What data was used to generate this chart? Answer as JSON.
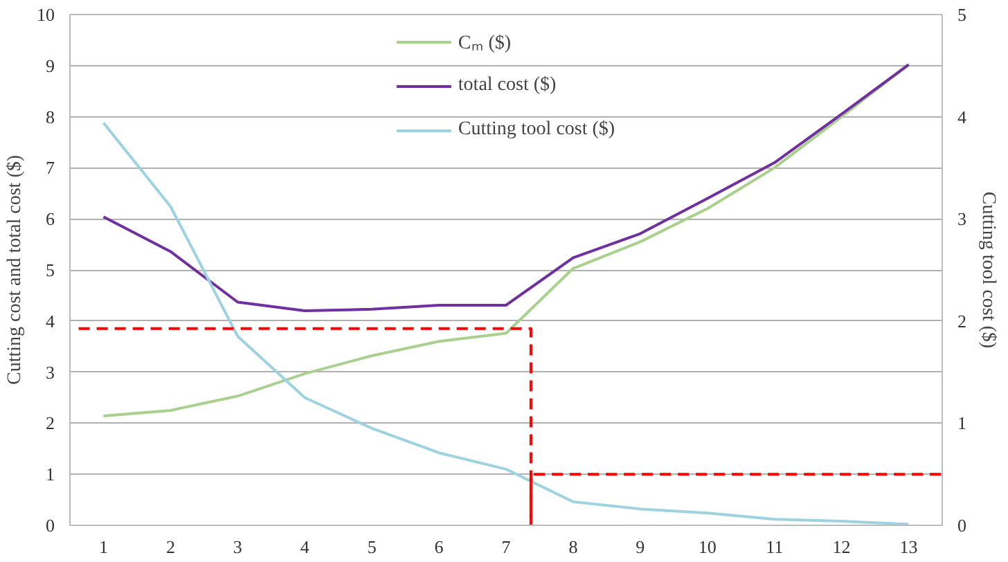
{
  "chart_data": {
    "type": "line",
    "x": [
      1,
      2,
      3,
      4,
      5,
      6,
      7,
      8,
      9,
      10,
      11,
      12,
      13
    ],
    "xlim": [
      0.5,
      13.5
    ],
    "xticks": [
      1,
      2,
      3,
      4,
      5,
      6,
      7,
      8,
      9,
      10,
      11,
      12,
      13
    ],
    "ylim": [
      0,
      10
    ],
    "yticks": [
      0,
      1,
      2,
      3,
      4,
      5,
      6,
      7,
      8,
      9,
      10
    ],
    "y2lim": [
      0,
      5
    ],
    "y2ticks": [
      0,
      1,
      2,
      3,
      4,
      5
    ],
    "ylabel": "Cutting cost and total cost ($)",
    "y2label": "Cutting tool cost ($)",
    "grid": "y",
    "legend": "top",
    "line_style": "solid",
    "marker": "none",
    "series": [
      {
        "name": "Cₘ ($)",
        "color": "#a9d18e",
        "values": [
          2.14,
          2.25,
          2.53,
          2.97,
          3.32,
          3.6,
          3.76,
          5.03,
          5.55,
          6.2,
          7.0,
          8.0,
          9.02
        ]
      },
      {
        "name": "total cost ($)",
        "color": "#7030a0",
        "values": [
          6.04,
          5.36,
          4.37,
          4.2,
          4.23,
          4.31,
          4.31,
          5.24,
          5.71,
          6.4,
          7.1,
          8.05,
          9.02
        ]
      },
      {
        "name": "Cutting tool cost ($)",
        "color": "#9dd3e0",
        "axis": "y2",
        "values": [
          3.94,
          3.12,
          1.85,
          1.25,
          0.95,
          0.71,
          0.55,
          0.23,
          0.16,
          0.12,
          0.06,
          0.04,
          0.01
        ]
      },
      {
        "color": "#ff0000",
        "line_style": "dashed",
        "x": [
          0.63,
          7.37,
          7.37
        ],
        "values": [
          3.85,
          3.85,
          0
        ]
      },
      {
        "color": "#ff0000",
        "line_style": "dashed",
        "axis": "y2",
        "x": [
          7.37,
          7.37,
          13.5
        ],
        "values": [
          0,
          0.5,
          0.5
        ]
      }
    ]
  }
}
